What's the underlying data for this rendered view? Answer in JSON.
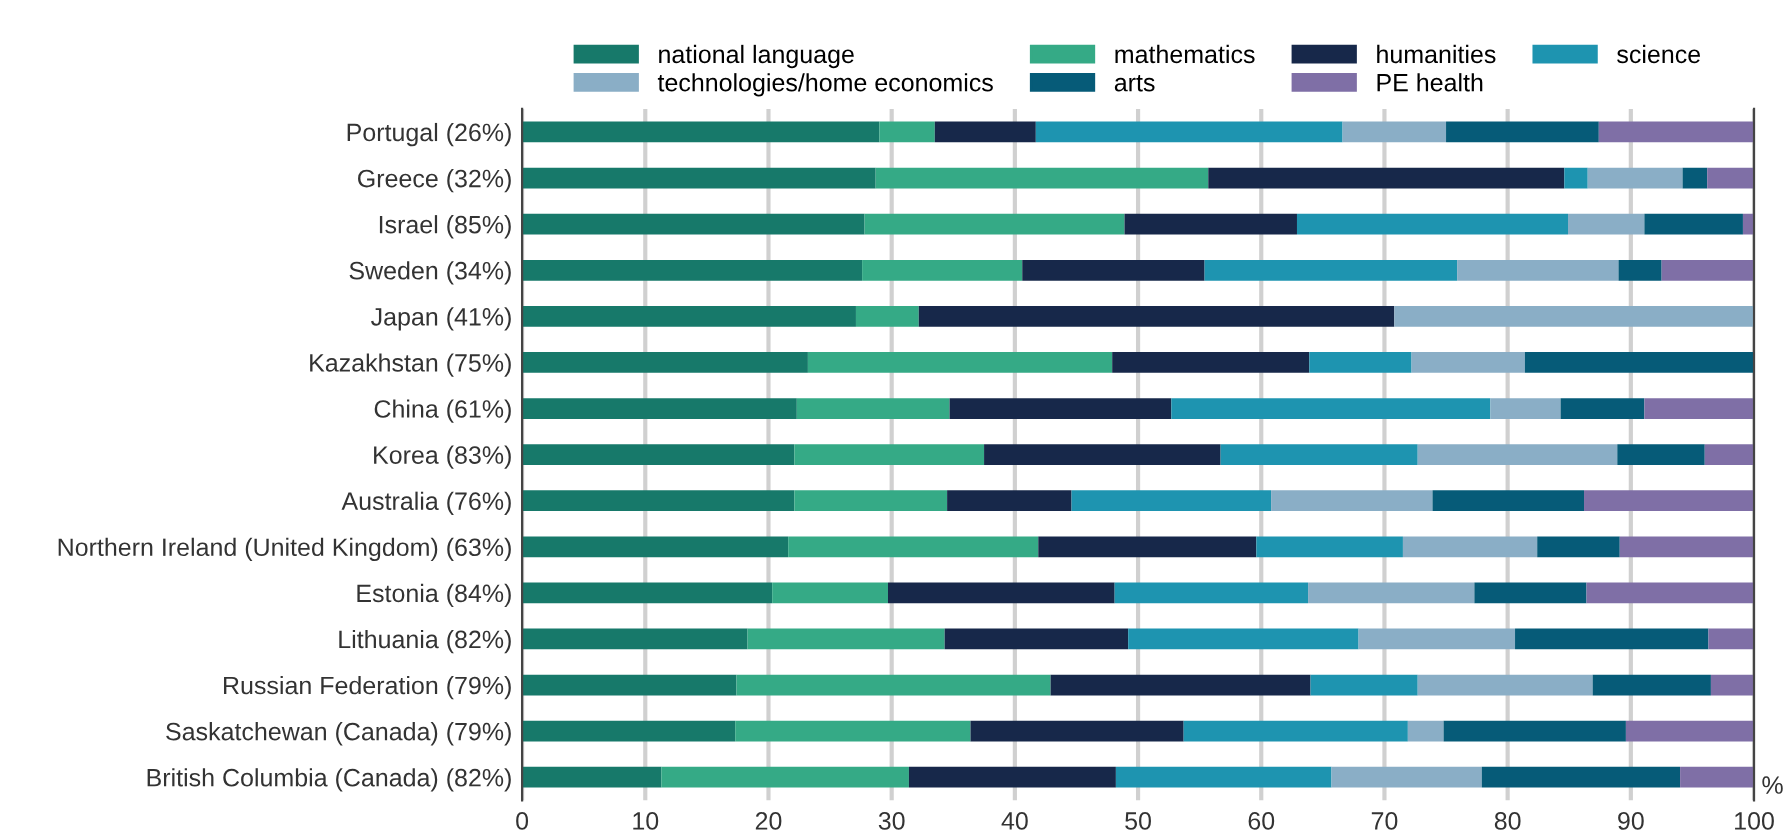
{
  "chart_data": {
    "type": "bar",
    "orientation": "horizontal",
    "stacked": true,
    "categories": [
      "Portugal (26%)",
      "Greece (32%)",
      "Israel (85%)",
      "Sweden (34%)",
      "Japan (41%)",
      "Kazakhstan (75%)",
      "China (61%)",
      "Korea (83%)",
      "Australia (76%)",
      "Northern Ireland (United Kingdom) (63%)",
      "Estonia (84%)",
      "Lithuania (82%)",
      "Russian Federation (79%)",
      "Saskatchewan (Canada) (79%)",
      "British Columbia (Canada) (82%)"
    ],
    "series": [
      {
        "name": "national language",
        "color": "#17796a",
        "values": [
          29.0,
          28.7,
          27.8,
          27.6,
          27.1,
          23.2,
          22.3,
          22.1,
          22.1,
          21.6,
          20.3,
          18.3,
          17.4,
          17.3,
          11.3
        ]
      },
      {
        "name": "mathematics",
        "color": "#35aa86",
        "values": [
          4.5,
          27.0,
          21.1,
          13.0,
          5.1,
          24.7,
          12.4,
          15.4,
          12.4,
          20.3,
          9.4,
          16.0,
          25.5,
          19.1,
          20.1
        ]
      },
      {
        "name": "humanities",
        "color": "#17284a",
        "values": [
          8.2,
          28.9,
          14.0,
          14.8,
          38.6,
          16.0,
          18.0,
          19.2,
          10.1,
          17.7,
          18.4,
          14.9,
          21.1,
          17.3,
          16.8
        ]
      },
      {
        "name": "science",
        "color": "#1e94b0",
        "values": [
          24.9,
          1.9,
          22.0,
          20.5,
          0,
          8.3,
          25.9,
          16.0,
          16.2,
          11.9,
          15.7,
          18.7,
          8.7,
          18.2,
          17.5
        ]
      },
      {
        "name": "technologies/home economics",
        "color": "#8aaec6",
        "values": [
          8.4,
          7.7,
          6.2,
          13.1,
          29.2,
          9.2,
          5.7,
          16.2,
          13.1,
          10.9,
          13.5,
          12.7,
          14.2,
          2.9,
          12.2
        ]
      },
      {
        "name": "arts",
        "color": "#065b78",
        "values": [
          12.4,
          2.0,
          8.0,
          3.5,
          0,
          18.6,
          6.8,
          7.1,
          12.3,
          6.7,
          9.1,
          15.7,
          9.6,
          14.8,
          16.1
        ]
      },
      {
        "name": "PE health",
        "color": "#7f6fa6",
        "values": [
          12.6,
          3.8,
          0.9,
          7.5,
          0,
          0,
          8.9,
          4.0,
          13.8,
          10.9,
          13.6,
          3.7,
          3.5,
          10.4,
          6.0
        ]
      }
    ],
    "xlim": [
      0,
      100
    ],
    "xticks": [
      0,
      10,
      20,
      30,
      40,
      50,
      60,
      70,
      80,
      90,
      100
    ],
    "xlabel": "%",
    "grid": "x",
    "legend": "top"
  }
}
